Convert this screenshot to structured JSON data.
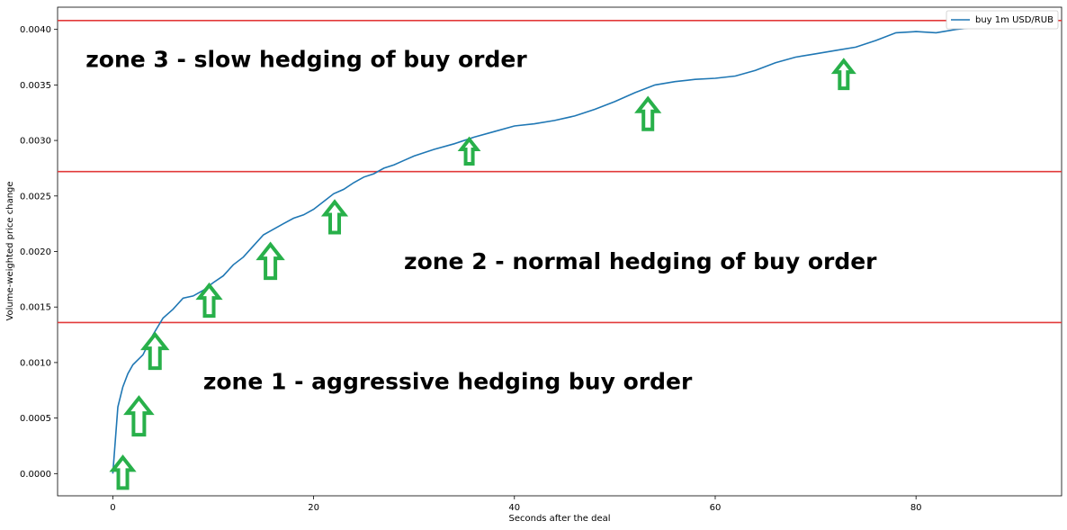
{
  "chart_data": {
    "type": "line",
    "xlabel": "Seconds after the deal",
    "ylabel": "Volume-weighted price change",
    "xlim": [
      -5.5,
      94.5
    ],
    "ylim": [
      -0.0002,
      0.0042
    ],
    "xticks": [
      0,
      20,
      40,
      60,
      80
    ],
    "xtick_labels": [
      "0",
      "20",
      "40",
      "60",
      "80"
    ],
    "yticks": [
      0.0,
      0.0005,
      0.001,
      0.0015,
      0.002,
      0.0025,
      0.003,
      0.0035,
      0.004
    ],
    "ytick_labels": [
      "0.0000",
      "0.0005",
      "0.0010",
      "0.0015",
      "0.0020",
      "0.0025",
      "0.0030",
      "0.0035",
      "0.0040"
    ],
    "grid": false,
    "legend_position": "top-right",
    "series": [
      {
        "name": "buy 1m USD/RUB",
        "color": "#1f77b4",
        "x": [
          0,
          0.5,
          1,
          1.5,
          2,
          3,
          4,
          5,
          6,
          7,
          8,
          9,
          10,
          11,
          12,
          13,
          14,
          15,
          16,
          17,
          18,
          19,
          20,
          21,
          22,
          23,
          24,
          25,
          26,
          27,
          28,
          29,
          30,
          32,
          34,
          36,
          38,
          40,
          42,
          44,
          46,
          48,
          50,
          52,
          54,
          56,
          58,
          60,
          62,
          64,
          66,
          68,
          70,
          72,
          74,
          76,
          78,
          80,
          82,
          84,
          86,
          88,
          90
        ],
        "y": [
          0.0,
          0.0006,
          0.00078,
          0.0009,
          0.00098,
          0.00107,
          0.00125,
          0.0014,
          0.00148,
          0.00158,
          0.0016,
          0.00165,
          0.00172,
          0.00178,
          0.00188,
          0.00195,
          0.00205,
          0.00215,
          0.0022,
          0.00225,
          0.0023,
          0.00233,
          0.00238,
          0.00245,
          0.00252,
          0.00256,
          0.00262,
          0.00267,
          0.0027,
          0.00275,
          0.00278,
          0.00282,
          0.00286,
          0.00292,
          0.00297,
          0.00303,
          0.00308,
          0.00313,
          0.00315,
          0.00318,
          0.00322,
          0.00328,
          0.00335,
          0.00343,
          0.0035,
          0.00353,
          0.00355,
          0.00356,
          0.00358,
          0.00363,
          0.0037,
          0.00375,
          0.00378,
          0.00381,
          0.00384,
          0.0039,
          0.00397,
          0.00398,
          0.00397,
          0.004,
          0.00402,
          0.00408,
          0.00407
        ]
      }
    ],
    "hlines": [
      {
        "y": 0.00136,
        "color": "#e23a3a"
      },
      {
        "y": 0.00272,
        "color": "#e23a3a"
      },
      {
        "y": 0.00408,
        "color": "#e23a3a"
      }
    ],
    "annotations": [
      {
        "text": "zone 1 - aggressive hedging buy order",
        "x": 9,
        "y": 0.00076
      },
      {
        "text": "zone 2 - normal hedging of buy order",
        "x": 29,
        "y": 0.00184
      },
      {
        "text": "zone 3 - slow hedging of buy order",
        "x": -2.7,
        "y": 0.00366
      }
    ],
    "arrows": [
      {
        "x": 1.0,
        "y": -0.00013,
        "size": 1
      },
      {
        "x": 2.6,
        "y": 0.00035,
        "size": 1.2
      },
      {
        "x": 4.2,
        "y": 0.00095,
        "size": 1.1
      },
      {
        "x": 9.6,
        "y": 0.00142,
        "size": 1.0
      },
      {
        "x": 15.7,
        "y": 0.00176,
        "size": 1.1
      },
      {
        "x": 22.1,
        "y": 0.00217,
        "size": 1.0
      },
      {
        "x": 35.5,
        "y": 0.00279,
        "size": 0.8
      },
      {
        "x": 53.3,
        "y": 0.0031,
        "size": 1.0
      },
      {
        "x": 72.8,
        "y": 0.00347,
        "size": 0.9
      }
    ],
    "arrow_color": "#28b04a"
  }
}
